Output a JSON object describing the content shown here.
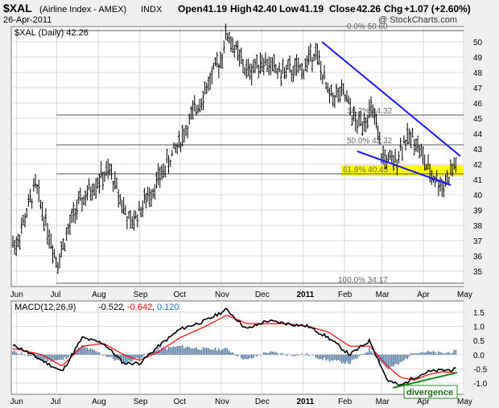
{
  "header": {
    "symbol": "$XAL",
    "name": "(Airline Index - AMEX)",
    "exchange": "INDX",
    "date": "26-Apr-2011",
    "watermark": "@ StockCharts.com",
    "open_label": "Open",
    "open": "41.19",
    "high_label": "High",
    "high": "42.40",
    "low_label": "Low",
    "low": "41.19",
    "close_label": "Close",
    "close": "42.26",
    "chg_label": "Chg",
    "chg": "+1.07 (+2.60%)"
  },
  "price_panel": {
    "legend": "$XAL (Daily) 42.26",
    "yticks": [
      35,
      36,
      37,
      38,
      39,
      40,
      41,
      42,
      43,
      44,
      45,
      46,
      47,
      48,
      49,
      50
    ],
    "fib_labels": [
      "0.0% 50.60",
      "38.2% 44.32",
      "50.0% 42.32",
      "61.8% 40.45",
      "100.0% 34.17"
    ]
  },
  "macd_panel": {
    "legend_prefix": "MACD(12,26,9)",
    "macd_value": "-0.522",
    "signal_value": "-0.642",
    "hist_value": "0.120",
    "yticks": [
      "1.5",
      "1.0",
      "0.5",
      "0.0",
      "-0.5",
      "-1.0"
    ],
    "annotation": "divergence"
  },
  "x_axis": {
    "labels": [
      "Jun",
      "Jul",
      "Aug",
      "Sep",
      "Oct",
      "Nov",
      "Dec",
      "2011",
      "Feb",
      "Mar",
      "Apr",
      "May"
    ]
  },
  "colors": {
    "price_bar": "#000000",
    "trend_line": "#1a1aff",
    "fib_line": "#555555",
    "highlight": "#ffff00",
    "macd_line": "#000000",
    "signal_line": "#ff0000",
    "histogram": "#5a7fa6",
    "divergence_line": "#1a8a1a",
    "signal_value_color": "#ff0000",
    "hist_value_color": "#1a6ad8"
  },
  "chart_data": [
    {
      "type": "line",
      "series": [
        {
          "name": "$XAL (Daily)",
          "x": [
            "2010-06-01",
            "2010-06-15",
            "2010-06-30",
            "2010-07-01",
            "2010-07-15",
            "2010-08-01",
            "2010-08-10",
            "2010-08-25",
            "2010-09-01",
            "2010-09-15",
            "2010-10-01",
            "2010-10-15",
            "2010-11-01",
            "2010-11-05",
            "2010-11-20",
            "2010-12-01",
            "2010-12-15",
            "2011-01-01",
            "2011-01-10",
            "2011-01-20",
            "2011-02-01",
            "2011-02-10",
            "2011-02-22",
            "2011-03-01",
            "2011-03-10",
            "2011-03-17",
            "2011-03-25",
            "2011-04-05",
            "2011-04-15",
            "2011-04-20",
            "2011-04-26"
          ],
          "values": [
            36.8,
            40.6,
            36.0,
            35.5,
            39.0,
            41.0,
            41.5,
            38.0,
            39.0,
            41.0,
            43.5,
            46.0,
            49.0,
            50.6,
            48.0,
            48.8,
            48.0,
            48.2,
            49.5,
            46.5,
            46.5,
            44.5,
            45.5,
            42.5,
            42.0,
            43.5,
            43.8,
            41.5,
            40.6,
            41.2,
            42.26
          ]
        }
      ],
      "xlabel": "",
      "ylabel": "",
      "ylim": [
        34.0,
        51.0
      ],
      "fibonacci": [
        {
          "level": "0.0%",
          "value": 50.6
        },
        {
          "level": "38.2%",
          "value": 44.32
        },
        {
          "level": "50.0%",
          "value": 42.32
        },
        {
          "level": "61.8%",
          "value": 40.45
        },
        {
          "level": "100.0%",
          "value": 34.17
        }
      ],
      "grid": true
    },
    {
      "type": "line",
      "series": [
        {
          "name": "MACD(12,26,9)",
          "x": [
            "2010-06-01",
            "2010-06-20",
            "2010-07-05",
            "2010-07-20",
            "2010-08-05",
            "2010-08-20",
            "2010-09-01",
            "2010-09-15",
            "2010-10-01",
            "2010-10-20",
            "2010-11-05",
            "2010-11-20",
            "2010-12-05",
            "2010-12-20",
            "2011-01-05",
            "2011-01-20",
            "2011-02-05",
            "2011-02-20",
            "2011-03-05",
            "2011-03-15",
            "2011-03-25",
            "2011-04-05",
            "2011-04-15",
            "2011-04-26"
          ],
          "values": [
            0.3,
            -0.2,
            -0.6,
            0.6,
            0.4,
            -0.3,
            -0.3,
            0.3,
            0.9,
            1.2,
            1.6,
            0.9,
            1.2,
            1.1,
            1.0,
            0.6,
            0.0,
            0.5,
            -0.9,
            -1.1,
            -0.8,
            -0.6,
            -0.55,
            -0.522
          ]
        },
        {
          "name": "Signal",
          "x": [
            "2010-06-01",
            "2010-06-20",
            "2010-07-05",
            "2010-07-20",
            "2010-08-05",
            "2010-08-20",
            "2010-09-01",
            "2010-09-15",
            "2010-10-01",
            "2010-10-20",
            "2010-11-05",
            "2010-11-20",
            "2010-12-05",
            "2010-12-20",
            "2011-01-05",
            "2011-01-20",
            "2011-02-05",
            "2011-02-20",
            "2011-03-05",
            "2011-03-15",
            "2011-03-25",
            "2011-04-05",
            "2011-04-15",
            "2011-04-26"
          ],
          "values": [
            0.2,
            0.0,
            -0.4,
            0.3,
            0.4,
            0.0,
            -0.2,
            0.1,
            0.6,
            1.0,
            1.4,
            1.1,
            1.1,
            1.1,
            1.0,
            0.8,
            0.3,
            0.3,
            -0.4,
            -0.8,
            -0.9,
            -0.7,
            -0.6,
            -0.642
          ]
        }
      ],
      "ylim": [
        -1.4,
        1.9
      ],
      "annotation": "divergence"
    }
  ]
}
